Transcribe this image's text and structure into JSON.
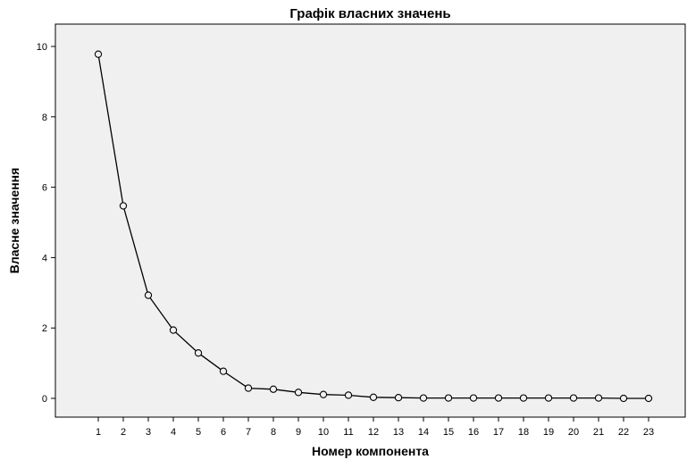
{
  "chart_data": {
    "type": "line",
    "title": "Графік власних значень",
    "xlabel": "Номер компонента",
    "ylabel": "Власне значення",
    "x": [
      1,
      2,
      3,
      4,
      5,
      6,
      7,
      8,
      9,
      10,
      11,
      12,
      13,
      14,
      15,
      16,
      17,
      18,
      19,
      20,
      21,
      22,
      23
    ],
    "y": [
      9.78,
      5.47,
      2.93,
      1.94,
      1.29,
      0.77,
      0.29,
      0.26,
      0.17,
      0.11,
      0.09,
      0.03,
      0.02,
      0.01,
      0.01,
      0.01,
      0.01,
      0.01,
      0.01,
      0.01,
      0.01,
      0.0,
      0.0
    ],
    "xlim": [
      1,
      23
    ],
    "ylim": [
      -0.5,
      10.7
    ],
    "yticks": [
      0,
      2,
      4,
      6,
      8,
      10
    ],
    "grid": false,
    "legend": "none",
    "colors": {
      "plot_background": "#f0f0f0",
      "line": "#000000",
      "marker_fill": "#f0f0f0"
    }
  }
}
